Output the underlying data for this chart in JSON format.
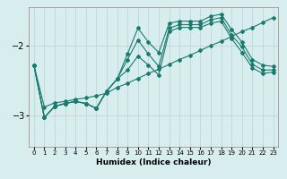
{
  "xlabel": "Humidex (Indice chaleur)",
  "xlim": [
    -0.5,
    23.5
  ],
  "ylim": [
    -3.45,
    -1.45
  ],
  "yticks": [
    -3,
    -2
  ],
  "xticks": [
    0,
    1,
    2,
    3,
    4,
    5,
    6,
    7,
    8,
    9,
    10,
    11,
    12,
    13,
    14,
    15,
    16,
    17,
    18,
    19,
    20,
    21,
    22,
    23
  ],
  "bg_color": "#d8eeee",
  "line_color": "#1a7a6e",
  "grid_color": "#b8d4d4",
  "line1_x": [
    0,
    1,
    2,
    3,
    4,
    5,
    6,
    7,
    8,
    9,
    10,
    11,
    12,
    13,
    14,
    15,
    16,
    17,
    18,
    19,
    20,
    21,
    22,
    23
  ],
  "line1_y": [
    -2.28,
    -2.88,
    -2.82,
    -2.8,
    -2.77,
    -2.75,
    -2.72,
    -2.68,
    -2.6,
    -2.54,
    -2.47,
    -2.4,
    -2.34,
    -2.27,
    -2.2,
    -2.14,
    -2.07,
    -2.0,
    -1.94,
    -1.87,
    -1.8,
    -1.74,
    -1.67,
    -1.6
  ],
  "line2_x": [
    0,
    1,
    2,
    3,
    4,
    5,
    6,
    7,
    8,
    9,
    10,
    11,
    12,
    13,
    14,
    15,
    16,
    17,
    18,
    19,
    20,
    21,
    22,
    23
  ],
  "line2_y": [
    -2.28,
    -3.03,
    -2.87,
    -2.83,
    -2.8,
    -2.83,
    -2.9,
    -2.65,
    -2.48,
    -2.35,
    -2.15,
    -2.28,
    -2.42,
    -1.8,
    -1.74,
    -1.74,
    -1.74,
    -1.68,
    -1.65,
    -1.9,
    -2.1,
    -2.32,
    -2.4,
    -2.38
  ],
  "line3_x": [
    0,
    1,
    2,
    3,
    4,
    5,
    6,
    7,
    8,
    9,
    10,
    11,
    12,
    13,
    14,
    15,
    16,
    17,
    18,
    19,
    20,
    21,
    22,
    23
  ],
  "line3_y": [
    -2.28,
    -3.03,
    -2.87,
    -2.83,
    -2.8,
    -2.83,
    -2.9,
    -2.65,
    -2.48,
    -2.2,
    -1.92,
    -2.12,
    -2.3,
    -1.75,
    -1.7,
    -1.7,
    -1.7,
    -1.63,
    -1.6,
    -1.85,
    -2.02,
    -2.27,
    -2.35,
    -2.35
  ],
  "line4_x": [
    0,
    1,
    2,
    3,
    4,
    5,
    6,
    7,
    8,
    9,
    10,
    11,
    12,
    13,
    14,
    15,
    16,
    17,
    18,
    19,
    20,
    21,
    22,
    23
  ],
  "line4_y": [
    -2.28,
    -3.03,
    -2.87,
    -2.83,
    -2.8,
    -2.83,
    -2.9,
    -2.65,
    -2.48,
    -2.12,
    -1.75,
    -1.95,
    -2.1,
    -1.68,
    -1.65,
    -1.65,
    -1.65,
    -1.58,
    -1.55,
    -1.77,
    -1.95,
    -2.2,
    -2.28,
    -2.3
  ]
}
